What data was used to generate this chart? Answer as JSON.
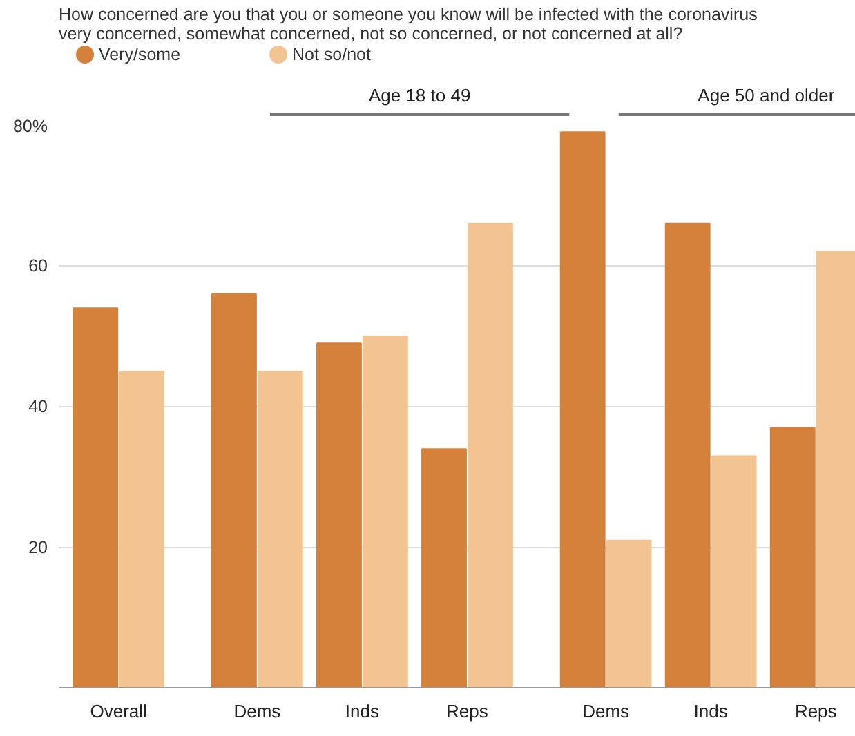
{
  "chart_data": {
    "type": "bar",
    "title": "How concerned are you that you or someone you know will be infected with the coronavirus\nvery concerned, somewhat concerned, not so concerned, or not concerned at all?",
    "categories": [
      "Overall",
      "Dems",
      "Inds",
      "Reps",
      "Dems",
      "Inds",
      "Reps"
    ],
    "series": [
      {
        "name": "Very/some",
        "color": "#d4813c",
        "values": [
          54,
          56,
          49,
          34,
          79,
          66,
          37
        ]
      },
      {
        "name": "Not so/not",
        "color": "#f2c492",
        "values": [
          45,
          45,
          50,
          66,
          21,
          33,
          62
        ]
      }
    ],
    "annotations": [
      "Age 18 to 49",
      "Age 50 and older"
    ],
    "ylim": [
      0,
      80
    ],
    "yticks": [
      {
        "value": 0,
        "label": null
      },
      20,
      40,
      60,
      {
        "value": 80,
        "label": "80%"
      }
    ],
    "grid": "y",
    "legend": "top left"
  }
}
